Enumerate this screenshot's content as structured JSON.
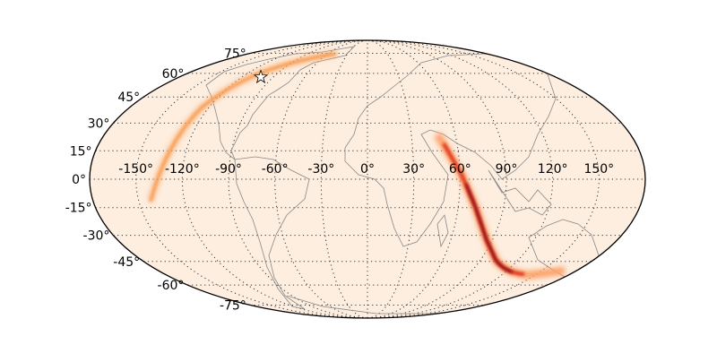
{
  "map": {
    "projection": "mollweide",
    "background_color": "#ffffff",
    "fill_color": "#fdeee0",
    "colormap": "hot (reversed)",
    "longitude_labels": [
      "-150°",
      "-120°",
      "-90°",
      "-60°",
      "-30°",
      "0°",
      "30°",
      "60°",
      "90°",
      "120°",
      "150°"
    ],
    "longitude_values": [
      -150,
      -120,
      -90,
      -60,
      -30,
      0,
      30,
      60,
      90,
      120,
      150
    ],
    "latitude_labels": [
      "75°",
      "60°",
      "45°",
      "30°",
      "15°",
      "0°",
      "-15°",
      "-30°",
      "-45°",
      "-60°",
      "-75°"
    ],
    "latitude_values": [
      75,
      60,
      45,
      30,
      15,
      0,
      -15,
      -30,
      -45,
      -60,
      -75
    ],
    "grid": true,
    "marker": {
      "icon": "star-icon",
      "lon": -102,
      "lat": 57.5
    }
  }
}
